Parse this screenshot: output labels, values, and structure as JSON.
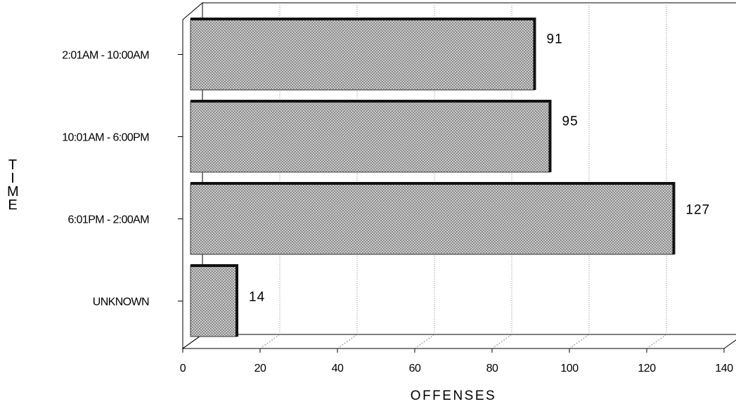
{
  "chart_data": {
    "type": "bar",
    "orientation": "horizontal",
    "categories": [
      "2:01AM - 10:00AM",
      "10:01AM - 6:00PM",
      "6:01PM - 2:00AM",
      "UNKNOWN"
    ],
    "values": [
      91,
      95,
      127,
      14
    ],
    "data_labels": [
      "91",
      "95",
      "127",
      "14"
    ],
    "title": "",
    "xlabel": "OFFENSES",
    "ylabel": "TIME",
    "ylabel_letters": [
      "T",
      "I",
      "M",
      "E"
    ],
    "xlim": [
      0,
      140
    ],
    "x_ticks": [
      "0",
      "20",
      "40",
      "60",
      "80",
      "100",
      "120",
      "140"
    ],
    "grid": "vertical dotted",
    "style": "3d",
    "bar_fill": "crosshatch",
    "colors": {
      "bar_face": "#d8d8d8",
      "bar_hatch": "#6a6a6a",
      "bar_edge": "#111111",
      "grid": "#8a8a8a",
      "axis": "#000000"
    }
  }
}
